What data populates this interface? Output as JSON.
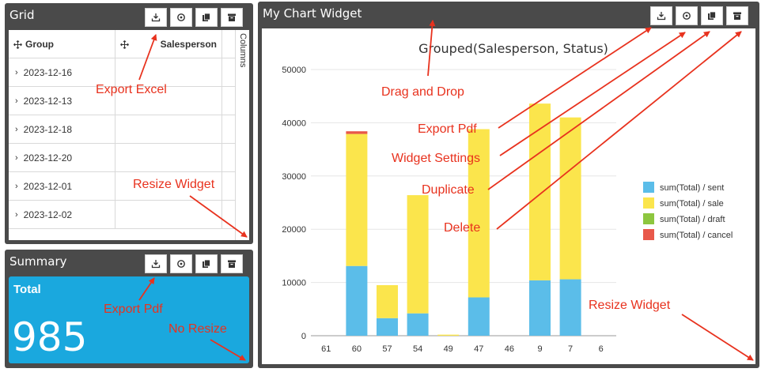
{
  "grid_widget": {
    "title": "Grid",
    "col_group": "Group",
    "col_salesperson": "Salesperson",
    "side_label": "Columns",
    "rows": [
      "2023-12-16",
      "2023-12-13",
      "2023-12-18",
      "2023-12-20",
      "2023-12-01",
      "2023-12-02"
    ]
  },
  "summary_widget": {
    "title": "Summary",
    "card_label": "Total",
    "card_value": "985",
    "card_color": "#1aa8de"
  },
  "chart_widget": {
    "title": "My Chart Widget"
  },
  "toolbar_icons": [
    "export-icon",
    "settings-icon",
    "duplicate-icon",
    "delete-icon"
  ],
  "annotations": {
    "export_excel": "Export Excel",
    "resize_widget_grid": "Resize Widget",
    "export_pdf_summary": "Export Pdf",
    "no_resize": "No Resize",
    "drag_and_drop": "Drag and Drop",
    "export_pdf": "Export Pdf",
    "widget_settings": "Widget Settings",
    "duplicate": "Duplicate",
    "delete": "Delete",
    "resize_widget_chart": "Resize Widget",
    "color": "#e8321e"
  },
  "chart_data": {
    "type": "bar",
    "stacked": true,
    "title": "Grouped(Salesperson, Status)",
    "categories": [
      "61",
      "60",
      "57",
      "54",
      "49",
      "47",
      "46",
      "9",
      "7",
      "6"
    ],
    "ylim": [
      0,
      50000
    ],
    "yticks": [
      0,
      10000,
      20000,
      30000,
      40000,
      50000
    ],
    "grid": true,
    "legend_position": "right",
    "series": [
      {
        "name": "sum(Total) / sent",
        "color": "#5bbde9",
        "values": [
          0,
          13100,
          3300,
          4200,
          0,
          7200,
          0,
          10400,
          10600,
          0
        ]
      },
      {
        "name": "sum(Total) / sale",
        "color": "#fbe54c",
        "values": [
          0,
          24800,
          6200,
          22200,
          200,
          31600,
          0,
          33200,
          30400,
          0
        ]
      },
      {
        "name": "sum(Total) / draft",
        "color": "#8dc63f",
        "values": [
          0,
          0,
          0,
          0,
          0,
          0,
          0,
          0,
          0,
          0
        ]
      },
      {
        "name": "sum(Total) / cancel",
        "color": "#e8584a",
        "values": [
          0,
          500,
          0,
          0,
          0,
          0,
          0,
          0,
          0,
          0
        ]
      }
    ]
  }
}
